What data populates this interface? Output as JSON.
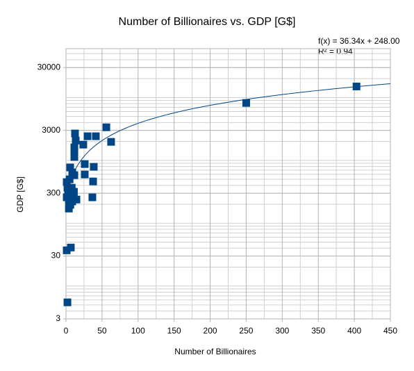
{
  "chart_data": {
    "type": "scatter",
    "title": "Number of Billionaires vs. GDP [G$]",
    "x_label": "Number of Billionaires",
    "y_label": "GDP [G$]",
    "x": [
      403,
      250,
      56,
      62.6,
      41.4,
      29.9,
      12.5,
      13.5,
      24,
      11.6,
      11.6,
      11.6,
      26,
      38.5,
      5.8,
      8.7,
      26,
      11.6,
      37.6,
      36.6,
      14.5,
      1,
      6.7,
      2,
      1,
      2,
      3,
      1,
      4,
      5,
      4,
      8,
      10.6,
      8.7,
      6,
      8,
      11,
      5
    ],
    "values": [
      15000,
      8200,
      3360,
      1970,
      2420,
      2420,
      2680,
      2070,
      1780,
      1610,
      1380,
      1130,
      873,
      789,
      770,
      643,
      596,
      582,
      462,
      258,
      238,
      37,
      41,
      5.5,
      451,
      367,
      316,
      258,
      227,
      200,
      171,
      292,
      258,
      222,
      196,
      367,
      316,
      499
    ],
    "color": "#004586",
    "xlim": [
      0,
      450
    ],
    "xticks": [
      0,
      50,
      100,
      150,
      200,
      250,
      300,
      350,
      400,
      450
    ],
    "ylim": [
      3,
      60000
    ],
    "yticks": [
      3,
      30,
      300,
      3000,
      30000
    ],
    "y_log": true,
    "grid": true,
    "minor_grid": true,
    "trendline": {
      "slope": 36.34,
      "intercept": 248.0,
      "color": "#004586",
      "equation": "f(x) = 36.34x + 248.00",
      "r2": "R² = 0.94"
    }
  }
}
